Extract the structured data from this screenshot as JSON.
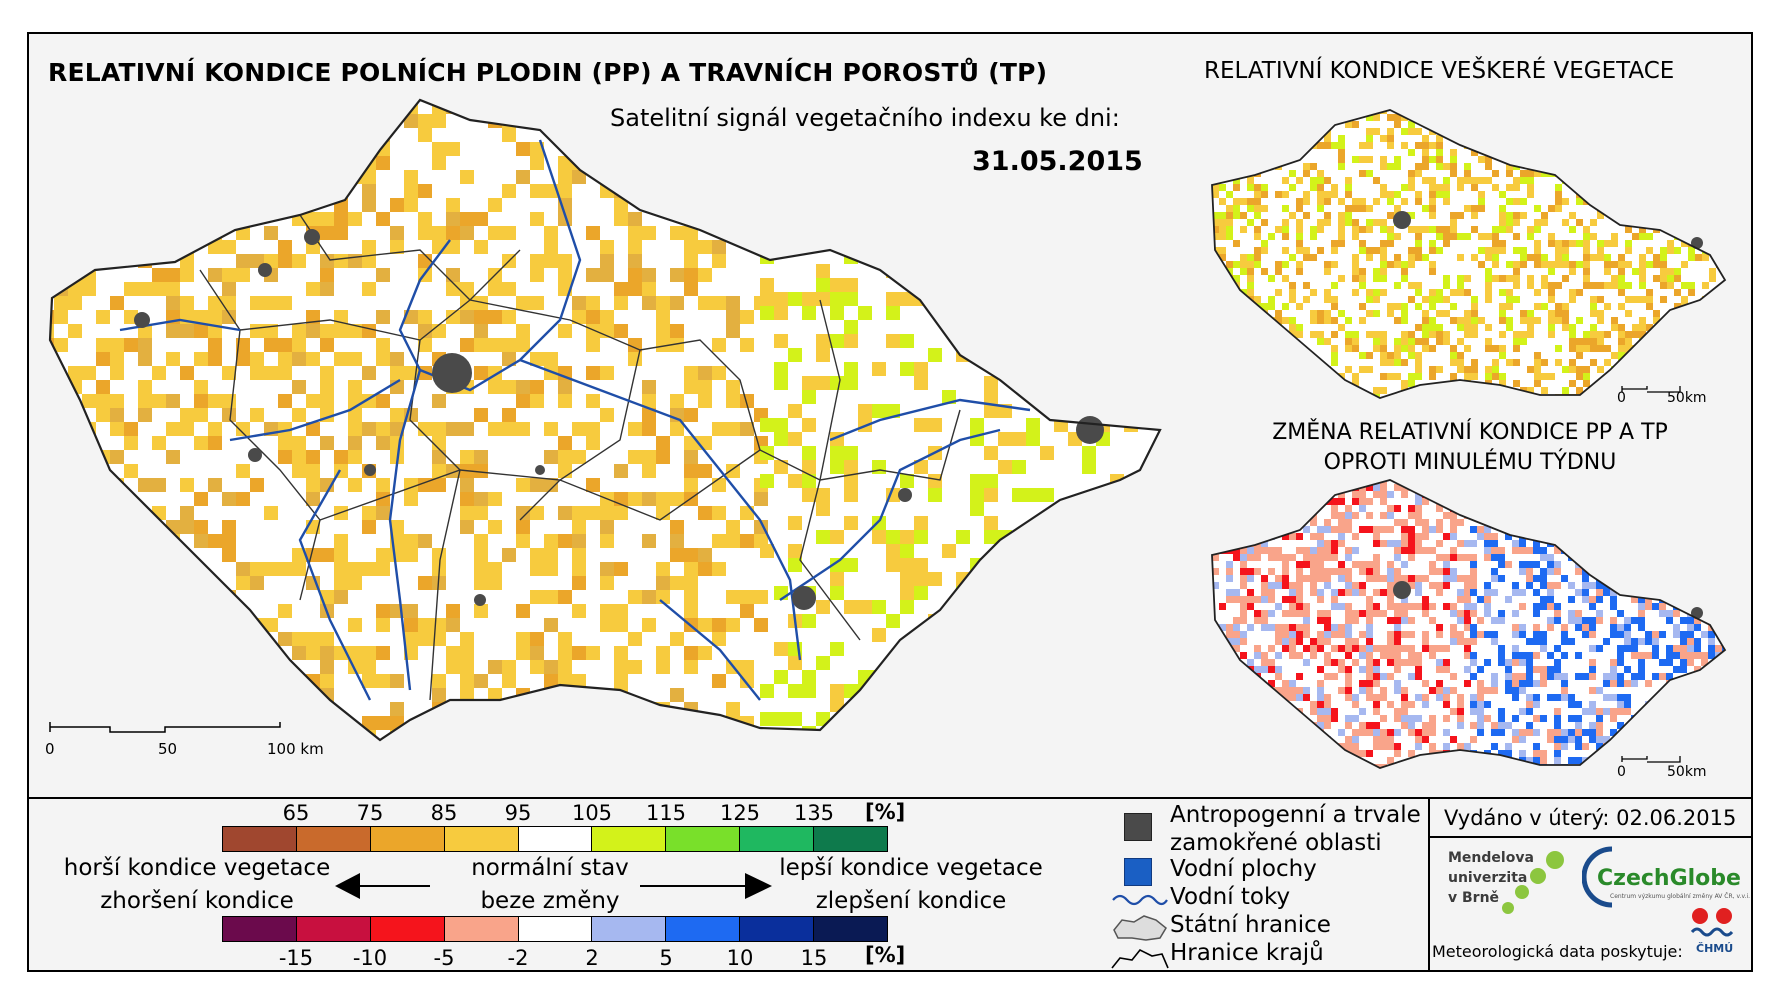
{
  "titles": {
    "main": "RELATIVNÍ KONDICE POLNÍCH PLODIN (PP) A TRAVNÍCH POROSTŮ (TP)",
    "right_top": "RELATIVNÍ KONDICE VEŠKERÉ VEGETACE",
    "subtitle": "Satelitní signál vegetačního indexu ke dni:",
    "date": "31.05.2015",
    "change_line1": "ZMĚNA RELATIVNÍ KONDICE PP A TP",
    "change_line2": "OPROTI MINULÉMU TÝDNU"
  },
  "scalebar_main": {
    "ticks": [
      "0",
      "50",
      "100 km"
    ]
  },
  "scalebar_small": {
    "ticks": [
      "0",
      "50km"
    ]
  },
  "condition_scale": {
    "ticks": [
      "65",
      "75",
      "85",
      "95",
      "105",
      "115",
      "125",
      "135"
    ],
    "unit": "[%]",
    "colors": [
      "#a0472f",
      "#c96a2c",
      "#eba62a",
      "#f7cb3e",
      "#ffffff",
      "#d3f21a",
      "#79e02a",
      "#1fb860",
      "#0e7a4c"
    ]
  },
  "change_scale": {
    "ticks": [
      "-15",
      "-10",
      "-5",
      "-2",
      "2",
      "5",
      "10",
      "15"
    ],
    "unit": "[%]",
    "colors": [
      "#6b0a4c",
      "#c8103f",
      "#f5141c",
      "#f9a48a",
      "#ffffff",
      "#a6b8f0",
      "#1e6af2",
      "#0a2f9c",
      "#0a1a54"
    ]
  },
  "arrow_labels": {
    "worse1": "horší kondice vegetace",
    "worse2": "zhoršení kondice",
    "normal1": "normální stav",
    "normal2": "beze změny",
    "better1": "lepší kondice vegetace",
    "better2": "zlepšení kondice"
  },
  "map_legend": {
    "anthropogenic1": "Antropogenní a trvale",
    "anthropogenic2": "zamokřené oblasti",
    "water_bodies": "Vodní plochy",
    "rivers": "Vodní toky",
    "state_border": "Státní hranice",
    "regions_border": "Hranice krajů"
  },
  "footer": {
    "issued": "Vydáno v úterý: 02.06.2015",
    "mendel": [
      "Mendelova",
      "univerzita",
      "v Brně"
    ],
    "czechglobe": "CzechGlobe",
    "czechglobe_sub": "Centrum výzkumu globální změny AV ČR, v.v.i.",
    "meteo": "Meteorologická data poskytuje:",
    "chmu": "ČHMÚ"
  },
  "colors": {
    "frame_bg": "#f4f4f4",
    "anthropogenic": "#4a4a4a",
    "water": "#1a5fc4",
    "river": "#1f4ea8"
  }
}
